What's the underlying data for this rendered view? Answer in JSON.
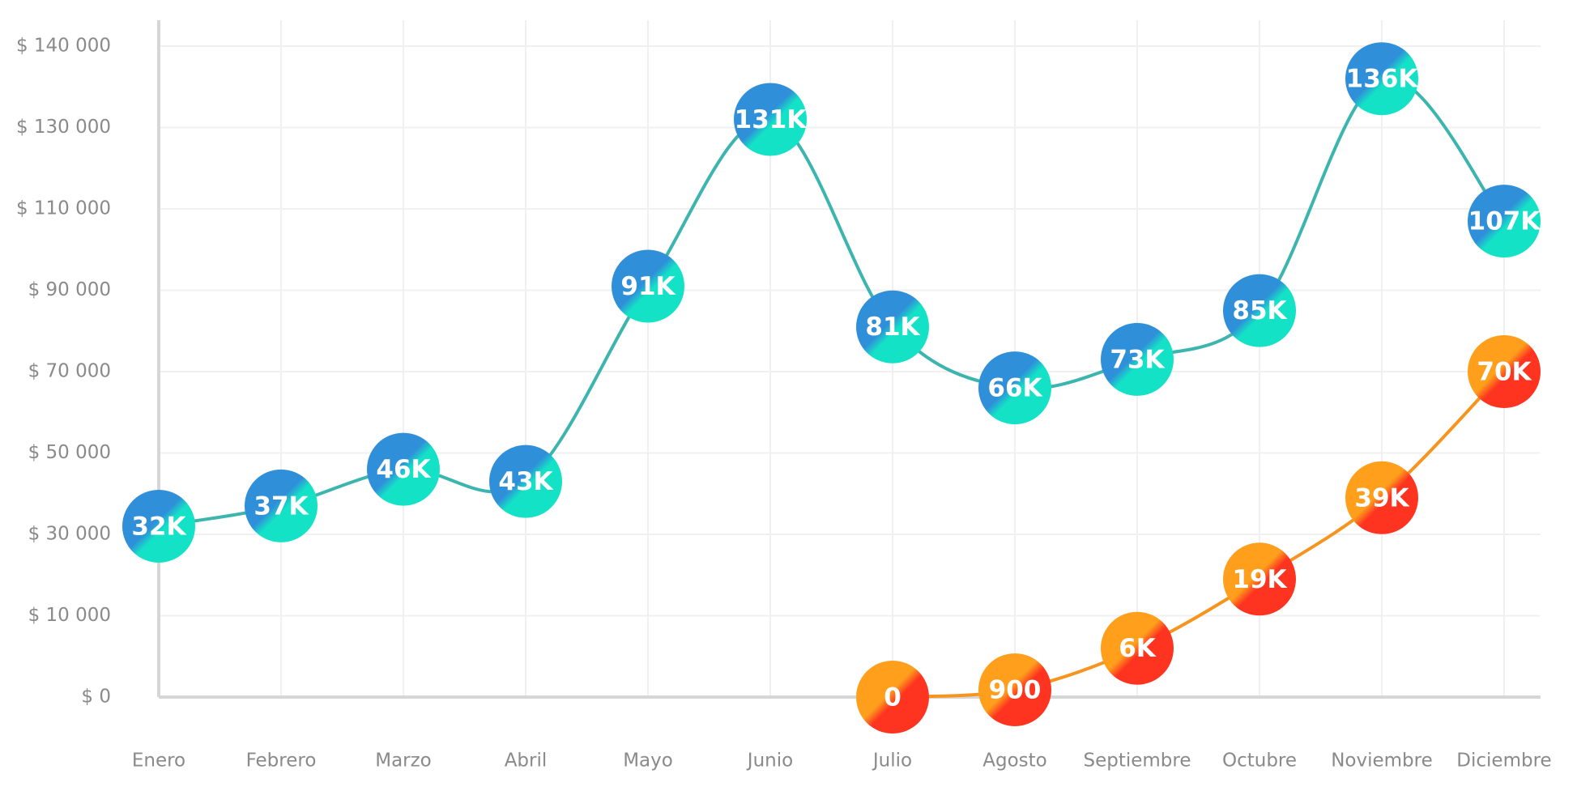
{
  "chart_data": {
    "type": "line",
    "categories": [
      "Enero",
      "Febrero",
      "Marzo",
      "Abril",
      "Mayo",
      "Junio",
      "Julio",
      "Agosto",
      "Septiembre",
      "Octubre",
      "Noviembre",
      "Diciembre"
    ],
    "series": [
      {
        "color": "#3cb5ae",
        "marker_colors": [
          "#2f8fd9",
          "#14e2c6"
        ],
        "values": [
          32000,
          37000,
          46000,
          43000,
          91000,
          131000,
          81000,
          66000,
          73000,
          85000,
          136000,
          107000
        ],
        "value_labels": [
          "32K",
          "37K",
          "46K",
          "43K",
          "91K",
          "131K",
          "81K",
          "66K",
          "73K",
          "85K",
          "136K",
          "107K"
        ]
      },
      {
        "color": "#f7941e",
        "marker_colors": [
          "#ff9f1c",
          "#ff3420"
        ],
        "values": [
          null,
          null,
          null,
          null,
          null,
          null,
          0,
          900,
          6000,
          19000,
          39000,
          70000
        ],
        "value_labels": [
          null,
          null,
          null,
          null,
          null,
          null,
          "0",
          "900",
          "6K",
          "19K",
          "39K",
          "70K"
        ]
      }
    ],
    "ylim": [
      0,
      140000
    ],
    "yticks": [
      {
        "value": 0,
        "label": "$ 0"
      },
      {
        "value": 10000,
        "label": "$ 10 000"
      },
      {
        "value": 30000,
        "label": "$ 30 000"
      },
      {
        "value": 50000,
        "label": "$ 50 000"
      },
      {
        "value": 70000,
        "label": "$ 70 000"
      },
      {
        "value": 90000,
        "label": "$ 90 000"
      },
      {
        "value": 110000,
        "label": "$ 110 000"
      },
      {
        "value": 130000,
        "label": "$ 130 000"
      },
      {
        "value": 140000,
        "label": "$ 140 000"
      }
    ],
    "grid": true
  }
}
